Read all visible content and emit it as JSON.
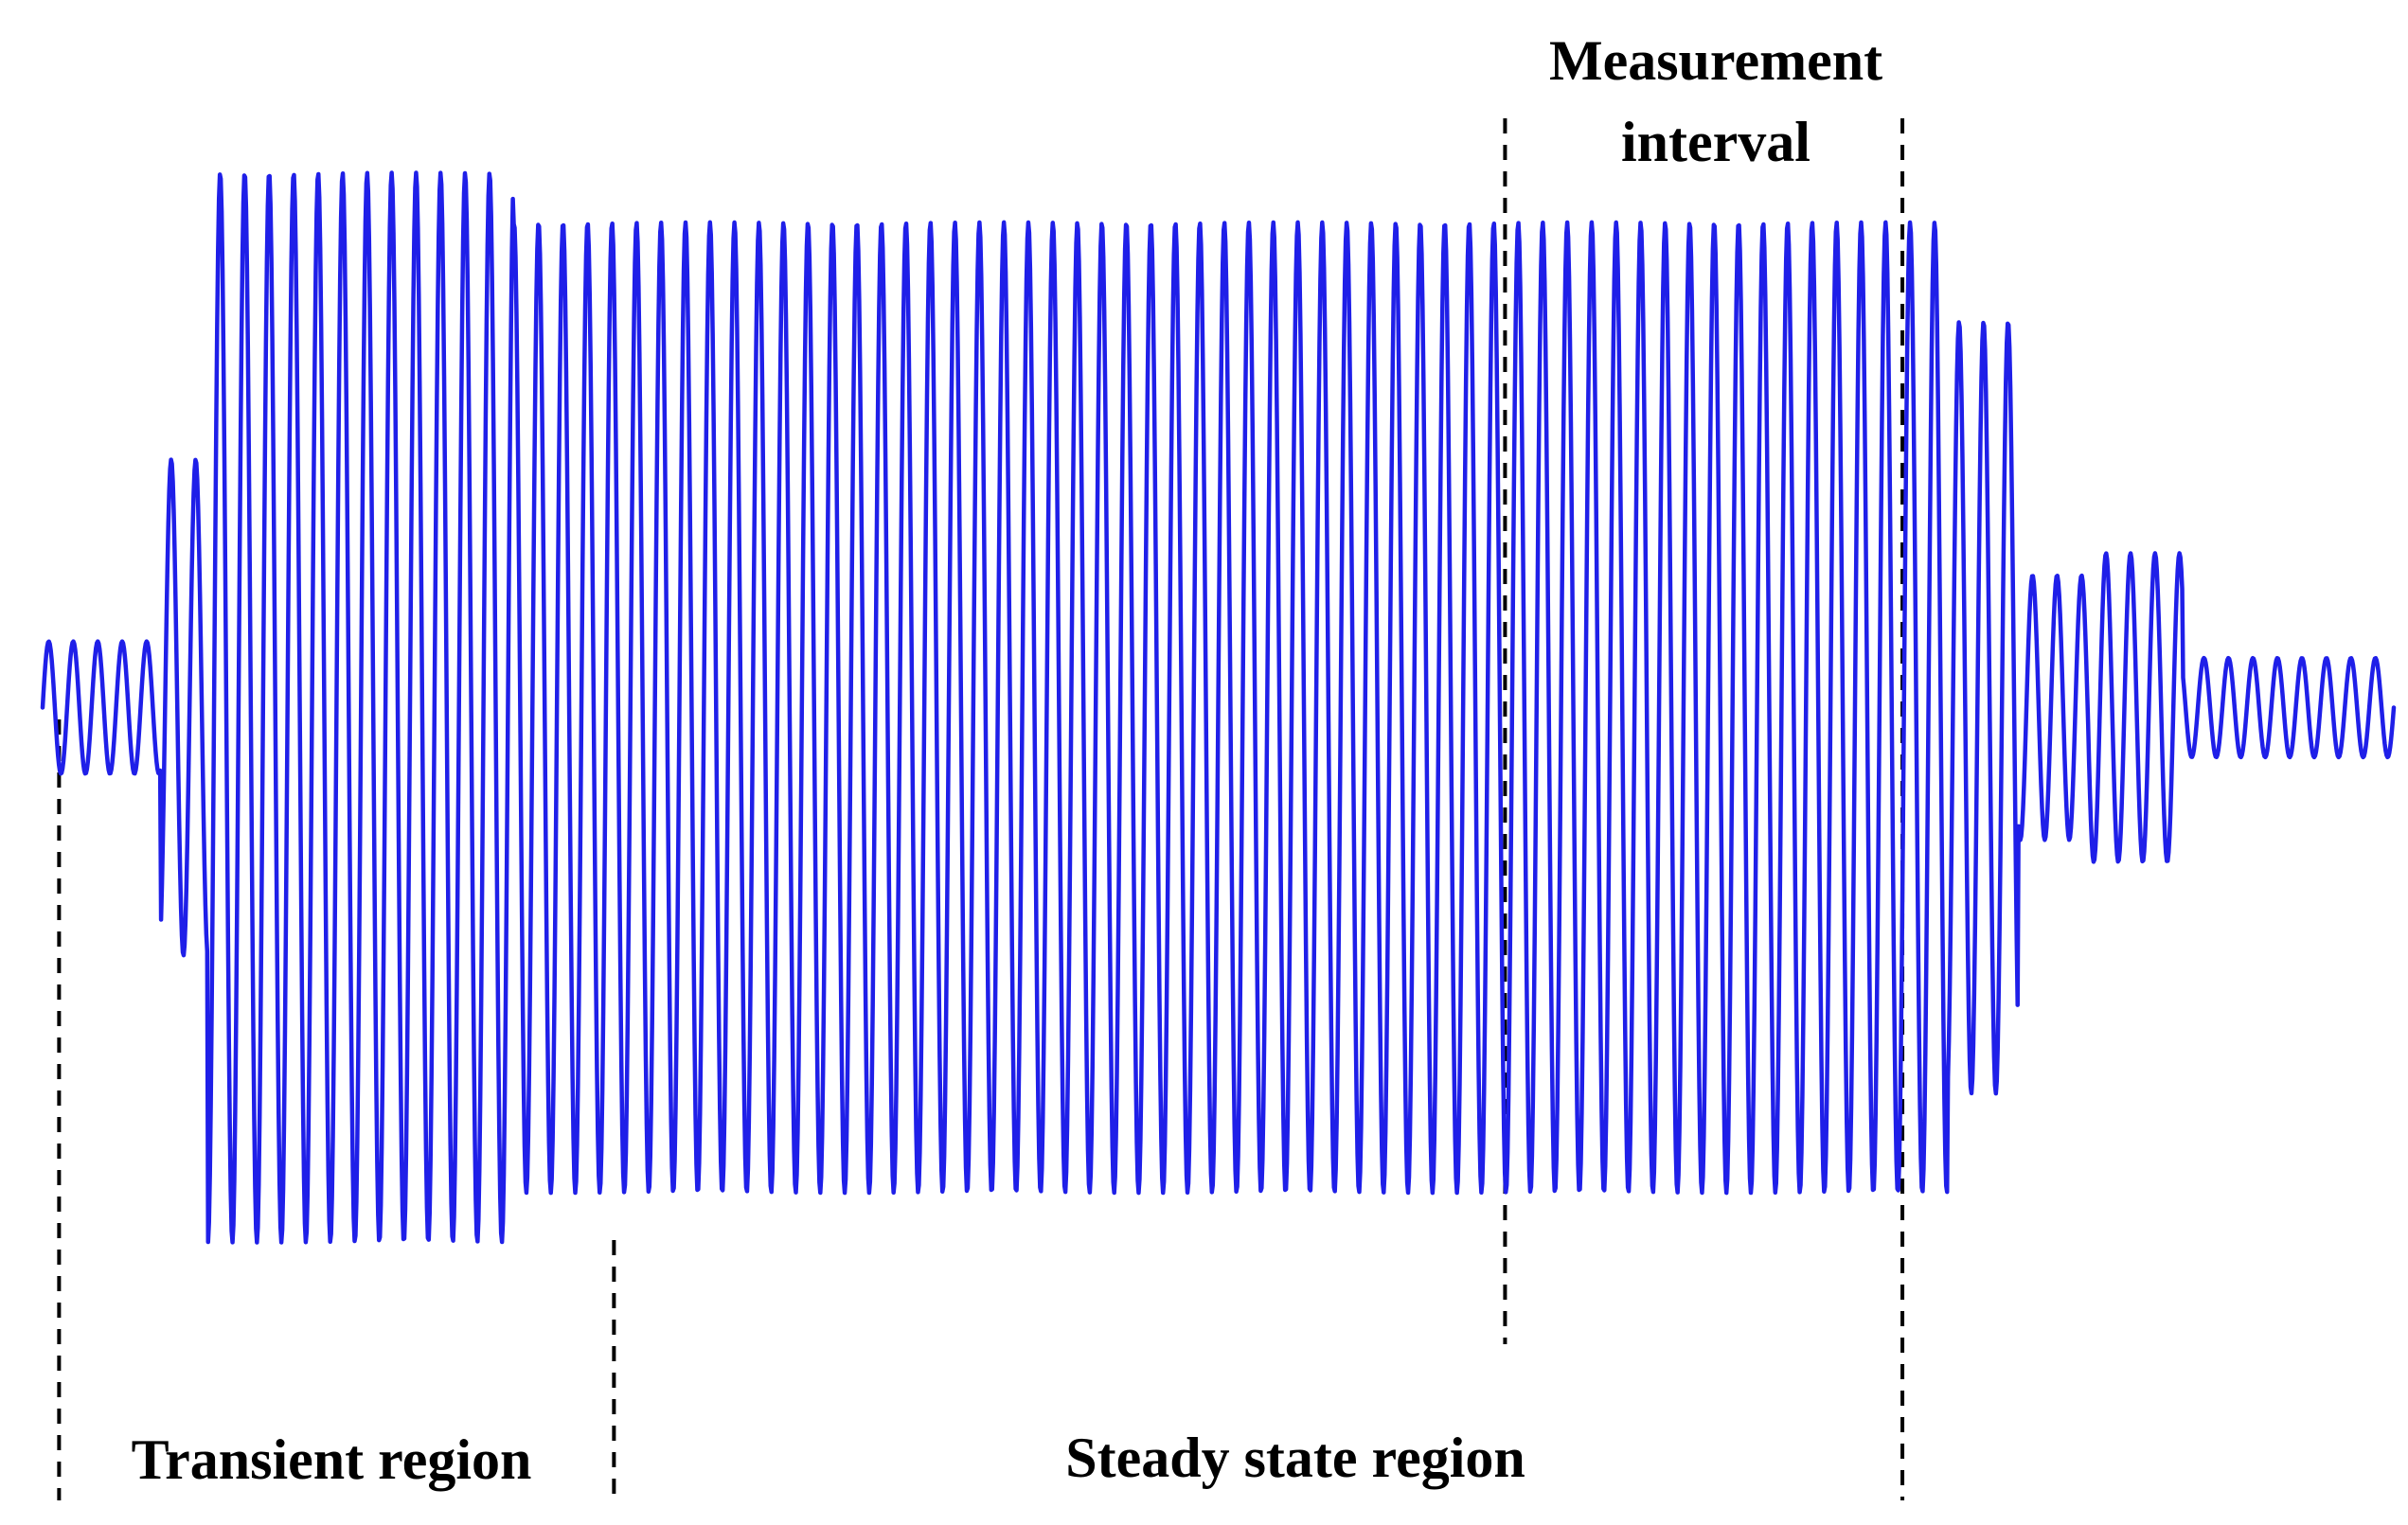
{
  "chart_data": {
    "type": "line",
    "title": "",
    "xlabel": "",
    "ylabel": "",
    "grid": false,
    "axes_visible": false,
    "legend": "none",
    "series": [
      {
        "description_hidden": true,
        "color": "#1f1fe8",
        "samples": 2600,
        "segments": [
          {
            "x_start": 0.0,
            "x_end": 0.05,
            "peak_amplitude": 0.12
          },
          {
            "x_start": 0.05,
            "x_end": 0.07,
            "peak_amplitude": 0.45
          },
          {
            "x_start": 0.07,
            "x_end": 0.2,
            "peak_amplitude": 0.97
          },
          {
            "x_start": 0.2,
            "x_end": 0.81,
            "peak_amplitude": 0.88
          },
          {
            "x_start": 0.81,
            "x_end": 0.84,
            "peak_amplitude": 0.7
          },
          {
            "x_start": 0.84,
            "x_end": 0.87,
            "peak_amplitude": 0.24
          },
          {
            "x_start": 0.87,
            "x_end": 0.91,
            "peak_amplitude": 0.28
          },
          {
            "x_start": 0.91,
            "x_end": 1.0,
            "peak_amplitude": 0.09
          }
        ],
        "cycles": 96
      }
    ],
    "ylim": [
      -1,
      1
    ],
    "xlim": [
      0,
      1
    ],
    "markers": [
      {
        "x": 0.007,
        "label_ref": "transient_start"
      },
      {
        "x": 0.243,
        "label_ref": "transient_end"
      },
      {
        "x": 0.622,
        "label_ref": "interval_start"
      },
      {
        "x": 0.791,
        "label_ref": "interval_end"
      }
    ],
    "annotations": {
      "transient": "Transient region",
      "steady": "Steady state region",
      "measurement_line1": "Measurement",
      "measurement_line2": "interval"
    }
  }
}
